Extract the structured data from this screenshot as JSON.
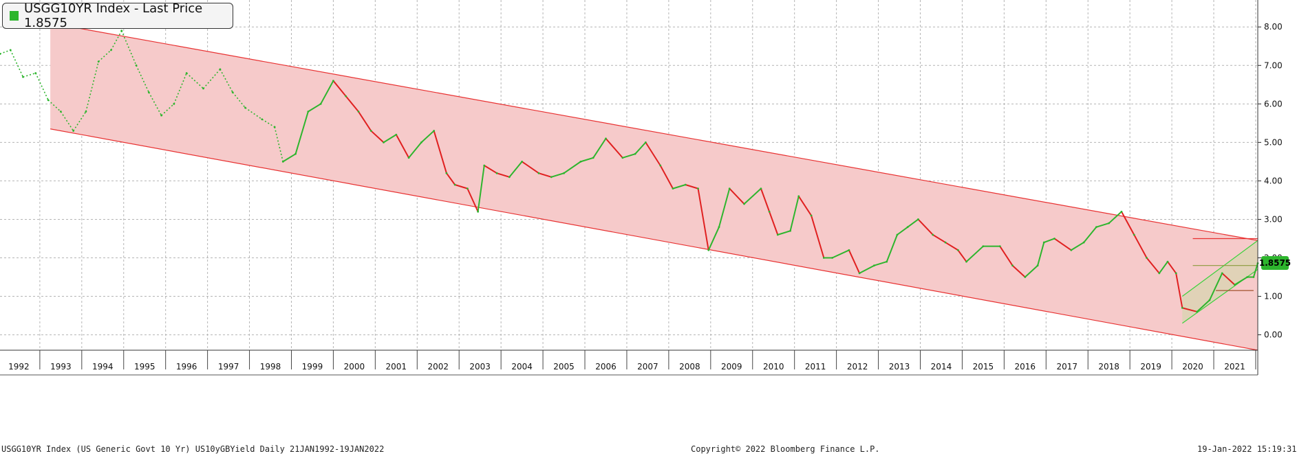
{
  "legend": {
    "text": "USGG10YR Index - Last Price 1.8575",
    "swatch_color": "#2db52d"
  },
  "last_price_label": "1.8575",
  "footer": {
    "left": "USGG10YR Index (US Generic Govt 10 Yr) US10yGBYield  Daily 21JAN1992-19JAN2022",
    "center": "Copyright© 2022 Bloomberg Finance L.P.",
    "right": "19-Jan-2022 15:19:31"
  },
  "colors": {
    "up": "#2db52d",
    "down": "#e02020",
    "channel_fill": "#f6caca",
    "channel_line": "#e83030",
    "inner_channel_fill": "#d8d4b0",
    "inner_channel_line": "#3bd13b",
    "grid": "#b4b4b4"
  },
  "chart_data": {
    "type": "line",
    "title": "USGG10YR Index - Last Price 1.8575",
    "x_range": [
      1992.05,
      2022.05
    ],
    "ylim": [
      -0.4,
      8.7
    ],
    "y_ticks": [
      "0.00",
      "1.00",
      "2.00",
      "3.00",
      "4.00",
      "5.00",
      "6.00",
      "7.00",
      "8.00"
    ],
    "x_tick_labels": [
      "1992",
      "1993",
      "1994",
      "1995",
      "1996",
      "1997",
      "1998",
      "1999",
      "2000",
      "2001",
      "2002",
      "2003",
      "2004",
      "2005",
      "2006",
      "2007",
      "2008",
      "2009",
      "2010",
      "2011",
      "2012",
      "2013",
      "2014",
      "2015",
      "2016",
      "2017",
      "2018",
      "2019",
      "2020",
      "2021"
    ],
    "grid": true,
    "series": [
      {
        "name": "USGG10YR Index",
        "last_value": 1.8575,
        "x": [
          1992.05,
          1992.3,
          1992.6,
          1992.9,
          1993.2,
          1993.5,
          1993.8,
          1994.1,
          1994.4,
          1994.7,
          1994.95,
          1995.3,
          1995.6,
          1995.9,
          1996.2,
          1996.5,
          1996.9,
          1997.3,
          1997.6,
          1997.9,
          1998.3,
          1998.6,
          1998.8,
          1999.1,
          1999.4,
          1999.7,
          2000.0,
          2000.3,
          2000.6,
          2000.9,
          2001.2,
          2001.5,
          2001.8,
          2002.1,
          2002.4,
          2002.7,
          2002.9,
          2003.2,
          2003.45,
          2003.6,
          2003.9,
          2004.2,
          2004.5,
          2004.9,
          2005.2,
          2005.5,
          2005.9,
          2006.2,
          2006.5,
          2006.9,
          2007.2,
          2007.45,
          2007.8,
          2008.1,
          2008.4,
          2008.7,
          2008.95,
          2009.2,
          2009.45,
          2009.8,
          2010.2,
          2010.4,
          2010.6,
          2010.9,
          2011.1,
          2011.4,
          2011.7,
          2011.9,
          2012.3,
          2012.55,
          2012.9,
          2013.2,
          2013.45,
          2013.7,
          2013.95,
          2014.3,
          2014.6,
          2014.9,
          2015.1,
          2015.5,
          2015.9,
          2016.2,
          2016.5,
          2016.8,
          2016.95,
          2017.2,
          2017.6,
          2017.9,
          2018.2,
          2018.5,
          2018.8,
          2019.1,
          2019.4,
          2019.7,
          2019.9,
          2020.1,
          2020.25,
          2020.6,
          2020.9,
          2021.2,
          2021.5,
          2021.8,
          2021.95,
          2022.05
        ],
        "y": [
          7.3,
          7.4,
          6.7,
          6.8,
          6.1,
          5.8,
          5.3,
          5.8,
          7.1,
          7.4,
          7.9,
          7.0,
          6.3,
          5.7,
          6.0,
          6.8,
          6.4,
          6.9,
          6.3,
          5.9,
          5.6,
          5.4,
          4.5,
          4.7,
          5.8,
          6.0,
          6.6,
          6.2,
          5.8,
          5.3,
          5.0,
          5.2,
          4.6,
          5.0,
          5.3,
          4.2,
          3.9,
          3.8,
          3.2,
          4.4,
          4.2,
          4.1,
          4.5,
          4.2,
          4.1,
          4.2,
          4.5,
          4.6,
          5.1,
          4.6,
          4.7,
          5.0,
          4.4,
          3.8,
          3.9,
          3.8,
          2.2,
          2.8,
          3.8,
          3.4,
          3.8,
          3.2,
          2.6,
          2.7,
          3.6,
          3.1,
          2.0,
          2.0,
          2.2,
          1.6,
          1.8,
          1.9,
          2.6,
          2.8,
          3.0,
          2.6,
          2.4,
          2.2,
          1.9,
          2.3,
          2.3,
          1.8,
          1.5,
          1.8,
          2.4,
          2.5,
          2.2,
          2.4,
          2.8,
          2.9,
          3.2,
          2.6,
          2.0,
          1.6,
          1.9,
          1.6,
          0.7,
          0.6,
          0.9,
          1.6,
          1.3,
          1.5,
          1.5,
          1.86
        ]
      }
    ],
    "annotations": [
      {
        "kind": "channel",
        "color": "red",
        "upper": [
          [
            1993.25,
            8.1
          ],
          [
            2022.05,
            2.45
          ]
        ],
        "lower": [
          [
            1993.25,
            5.35
          ],
          [
            2022.05,
            -0.4
          ]
        ]
      },
      {
        "kind": "channel",
        "color": "green",
        "upper": [
          [
            2020.25,
            1.0
          ],
          [
            2022.05,
            2.45
          ]
        ],
        "lower": [
          [
            2020.25,
            0.3
          ],
          [
            2022.05,
            1.7
          ]
        ]
      },
      {
        "kind": "hline",
        "color": "red",
        "y": 2.5,
        "x": [
          2020.5,
          2022.05
        ]
      },
      {
        "kind": "hline",
        "color": "green",
        "y": 1.8,
        "x": [
          2020.5,
          2022.05
        ]
      },
      {
        "kind": "hline",
        "color": "brown",
        "y": 1.15,
        "x": [
          2021.05,
          2021.95
        ]
      }
    ]
  }
}
